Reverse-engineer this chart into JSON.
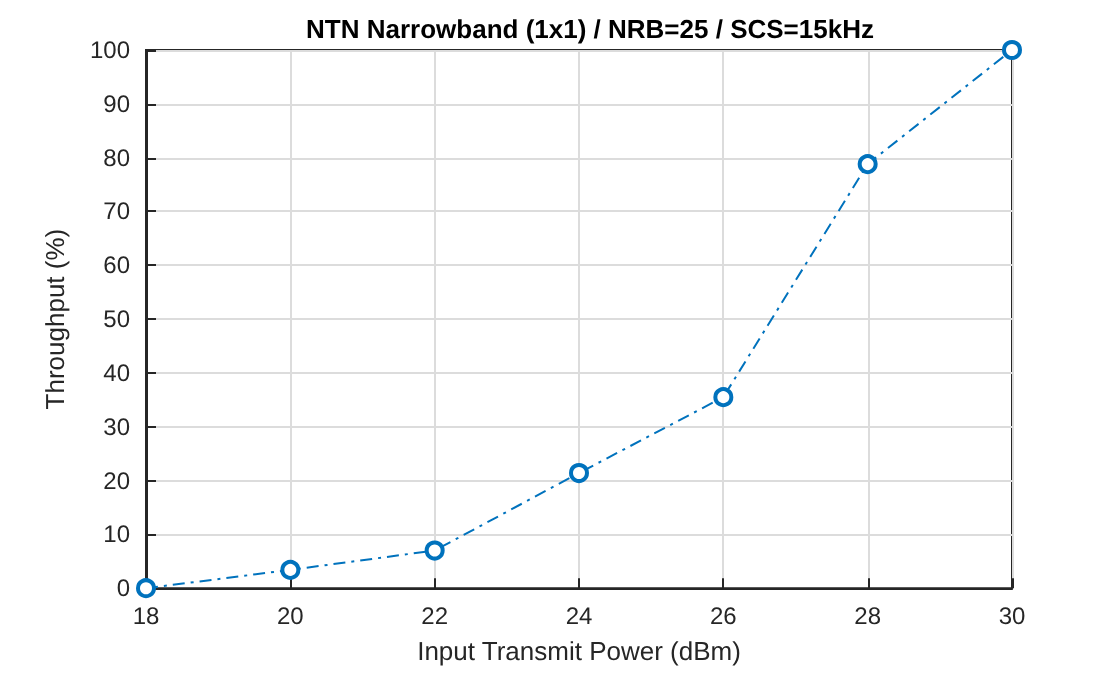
{
  "chart_data": {
    "type": "line",
    "title": "NTN Narrowband (1x1) / NRB=25 / SCS=15kHz",
    "xlabel": "Input Transmit Power (dBm)",
    "ylabel": "Throughput (%)",
    "x": [
      18,
      20,
      22,
      24,
      26,
      28,
      30
    ],
    "series": [
      {
        "color": "#0072bd",
        "values": [
          0,
          3.4,
          7.0,
          21.4,
          35.5,
          78.8,
          100
        ]
      }
    ],
    "xlim": [
      18,
      30
    ],
    "xticks": [
      18,
      20,
      22,
      24,
      26,
      28,
      30
    ],
    "ylim": [
      0,
      100
    ],
    "yticks": [
      0,
      10,
      20,
      30,
      40,
      50,
      60,
      70,
      80,
      90,
      100
    ],
    "grid": true,
    "marker": "circle",
    "line_style": "dashed"
  }
}
